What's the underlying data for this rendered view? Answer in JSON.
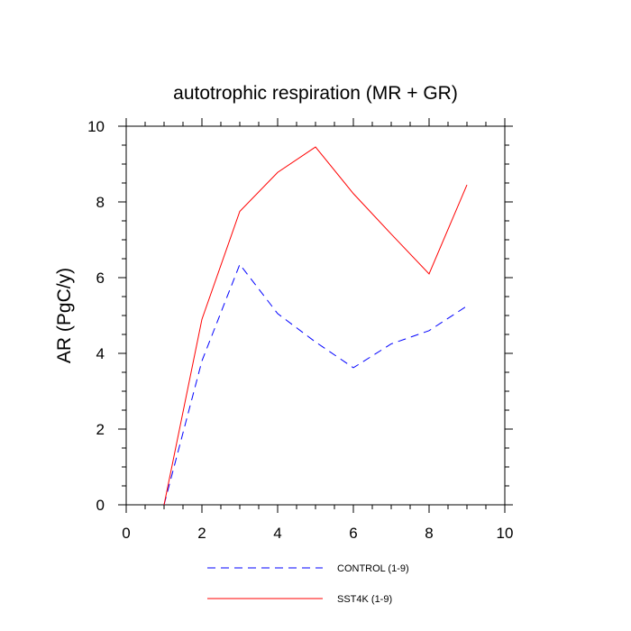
{
  "chart_data": {
    "type": "line",
    "title": "autotrophic respiration (MR + GR)",
    "xlabel": "",
    "ylabel": "AR  (PgC/y)",
    "xlim": [
      0,
      10
    ],
    "ylim": [
      0,
      10
    ],
    "xticks": [
      0,
      2,
      4,
      6,
      8,
      10
    ],
    "yticks": [
      0,
      2,
      4,
      6,
      8,
      10
    ],
    "x": [
      1,
      2,
      3,
      4,
      5,
      6,
      7,
      8,
      9
    ],
    "series": [
      {
        "name": "CONTROL (1-9)",
        "color": "#0000ff",
        "dash": "dashed",
        "values": [
          0.0,
          3.8,
          6.35,
          5.05,
          4.3,
          3.62,
          4.25,
          4.6,
          5.25
        ]
      },
      {
        "name": "SST4K (1-9)",
        "color": "#ff0000",
        "dash": "solid",
        "values": [
          0.0,
          4.9,
          7.75,
          8.78,
          9.45,
          8.22,
          7.15,
          6.1,
          8.45
        ]
      }
    ],
    "legend_position": "bottom"
  }
}
